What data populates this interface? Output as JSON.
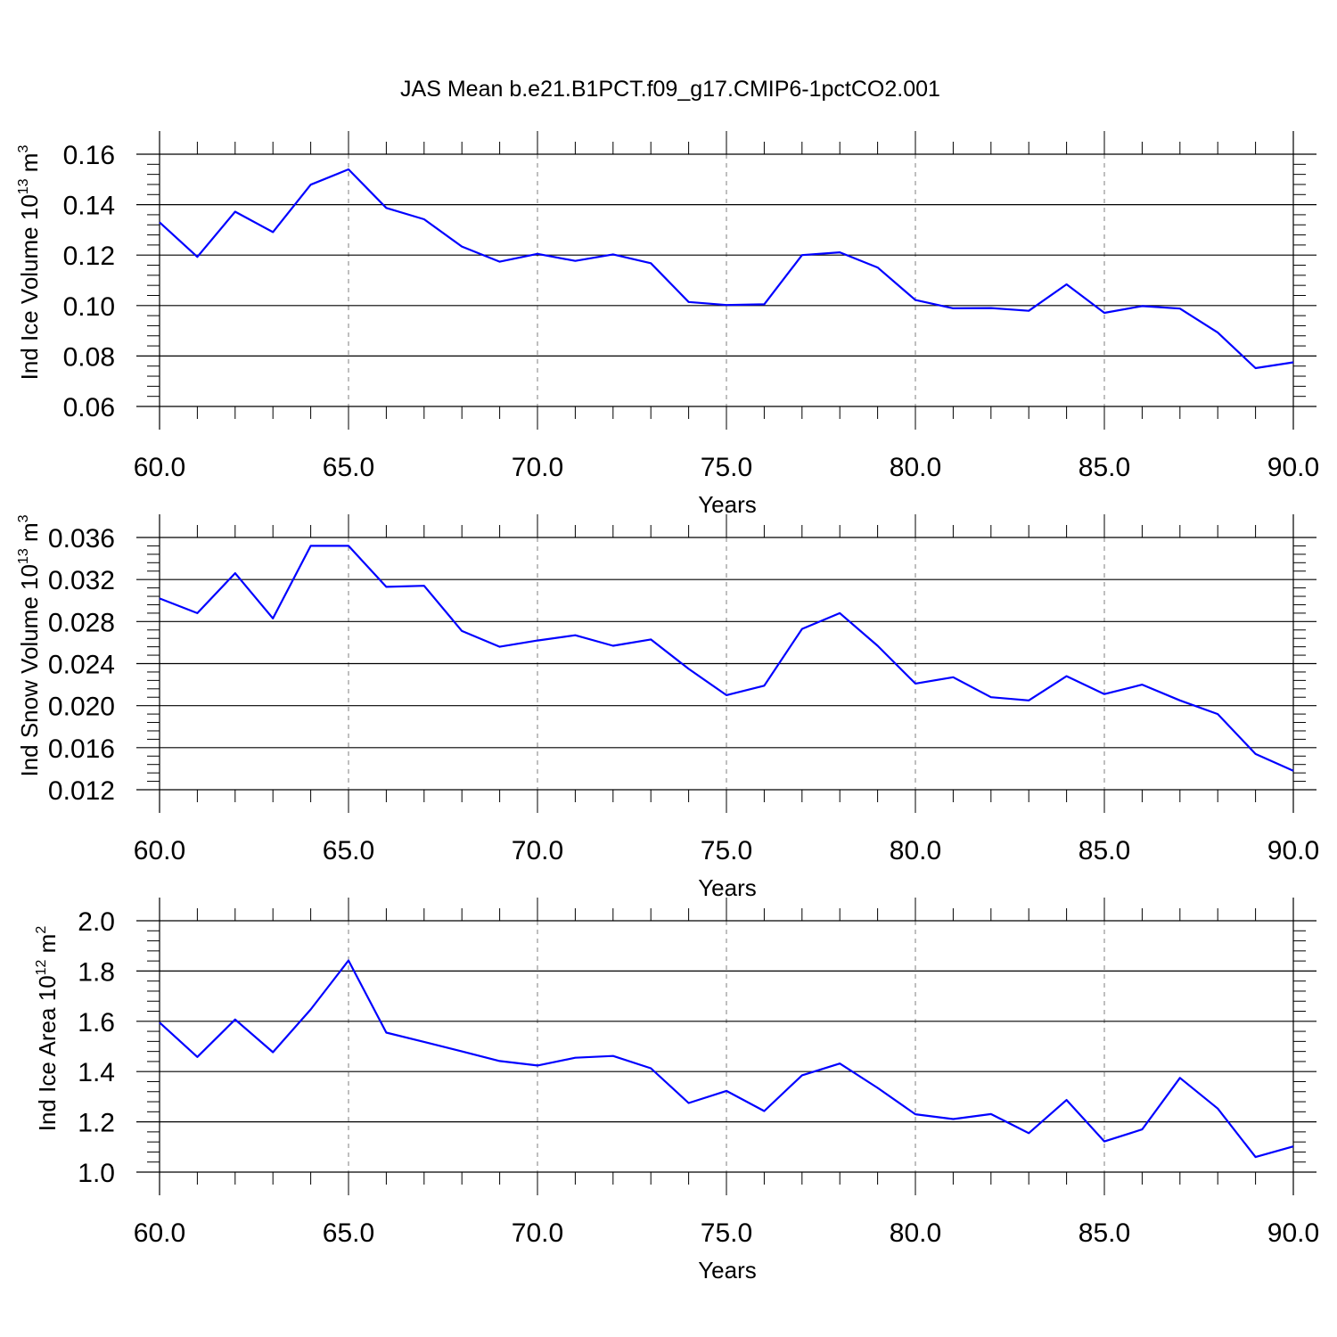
{
  "figure": {
    "title": "JAS Mean b.e21.B1PCT.f09_g17.CMIP6-1pctCO2.001",
    "line_color": "#0000ff",
    "grid_color": "#7f7f7f",
    "axis_color": "#000000"
  },
  "chart_data": [
    {
      "type": "line",
      "title": "JAS Mean b.e21.B1PCT.f09_g17.CMIP6-1pctCO2.001",
      "xlabel": "Years",
      "ylabel": {
        "prefix": "Ind Ice Volume 10",
        "exp": "13",
        "unit": " m",
        "unit_exp": "3"
      },
      "xlim": [
        60,
        90
      ],
      "ylim": [
        0.06,
        0.16
      ],
      "xticks": [
        "60.0",
        "65.0",
        "70.0",
        "75.0",
        "80.0",
        "85.0",
        "90.0"
      ],
      "yticks": [
        "0.06",
        "0.08",
        "0.10",
        "0.12",
        "0.14",
        "0.16"
      ],
      "x": [
        60,
        61,
        62,
        63,
        64,
        65,
        66,
        67,
        68,
        69,
        70,
        71,
        72,
        73,
        74,
        75,
        76,
        77,
        78,
        79,
        80,
        81,
        82,
        83,
        84,
        85,
        86,
        87,
        88,
        89,
        90
      ],
      "series": [
        {
          "name": "Ind Ice Volume",
          "values": [
            0.133,
            0.1193,
            0.1372,
            0.1291,
            0.1479,
            0.154,
            0.1387,
            0.1342,
            0.1234,
            0.1174,
            0.1205,
            0.1177,
            0.1203,
            0.1168,
            0.1014,
            0.1002,
            0.1005,
            0.12,
            0.1211,
            0.1151,
            0.1022,
            0.0989,
            0.099,
            0.0979,
            0.1084,
            0.0971,
            0.0998,
            0.0988,
            0.0893,
            0.0752,
            0.0775
          ]
        }
      ]
    },
    {
      "type": "line",
      "xlabel": "Years",
      "ylabel": {
        "prefix": "Ind Snow Volume 10",
        "exp": "13",
        "unit": " m",
        "unit_exp": "3"
      },
      "xlim": [
        60,
        90
      ],
      "ylim": [
        0.012,
        0.036
      ],
      "xticks": [
        "60.0",
        "65.0",
        "70.0",
        "75.0",
        "80.0",
        "85.0",
        "90.0"
      ],
      "yticks": [
        "0.012",
        "0.016",
        "0.020",
        "0.024",
        "0.028",
        "0.032",
        "0.036"
      ],
      "x": [
        60,
        61,
        62,
        63,
        64,
        65,
        66,
        67,
        68,
        69,
        70,
        71,
        72,
        73,
        74,
        75,
        76,
        77,
        78,
        79,
        80,
        81,
        82,
        83,
        84,
        85,
        86,
        87,
        88,
        89,
        90
      ],
      "series": [
        {
          "name": "Ind Snow Volume",
          "values": [
            0.0302,
            0.0288,
            0.0326,
            0.0283,
            0.0352,
            0.0352,
            0.0313,
            0.0314,
            0.0271,
            0.0256,
            0.0262,
            0.0267,
            0.0257,
            0.0263,
            0.0235,
            0.021,
            0.0219,
            0.0273,
            0.0288,
            0.0257,
            0.0221,
            0.0227,
            0.0208,
            0.0205,
            0.0228,
            0.0211,
            0.022,
            0.0205,
            0.0192,
            0.0154,
            0.0138
          ]
        }
      ]
    },
    {
      "type": "line",
      "xlabel": "Years",
      "ylabel": {
        "prefix": "Ind Ice Area 10",
        "exp": "12",
        "unit": " m",
        "unit_exp": "2"
      },
      "xlim": [
        60,
        90
      ],
      "ylim": [
        1.0,
        2.0
      ],
      "xticks": [
        "60.0",
        "65.0",
        "70.0",
        "75.0",
        "80.0",
        "85.0",
        "90.0"
      ],
      "yticks": [
        "1.0",
        "1.2",
        "1.4",
        "1.6",
        "1.8",
        "2.0"
      ],
      "x": [
        60,
        61,
        62,
        63,
        64,
        65,
        66,
        67,
        68,
        69,
        70,
        71,
        72,
        73,
        74,
        75,
        76,
        77,
        78,
        79,
        80,
        81,
        82,
        83,
        84,
        85,
        86,
        87,
        88,
        89,
        90
      ],
      "series": [
        {
          "name": "Ind Ice Area",
          "values": [
            1.595,
            1.458,
            1.607,
            1.477,
            1.647,
            1.842,
            1.555,
            1.518,
            1.48,
            1.442,
            1.424,
            1.455,
            1.462,
            1.413,
            1.275,
            1.323,
            1.243,
            1.385,
            1.432,
            1.335,
            1.23,
            1.211,
            1.231,
            1.155,
            1.287,
            1.122,
            1.17,
            1.375,
            1.253,
            1.06,
            1.102
          ]
        }
      ]
    }
  ]
}
